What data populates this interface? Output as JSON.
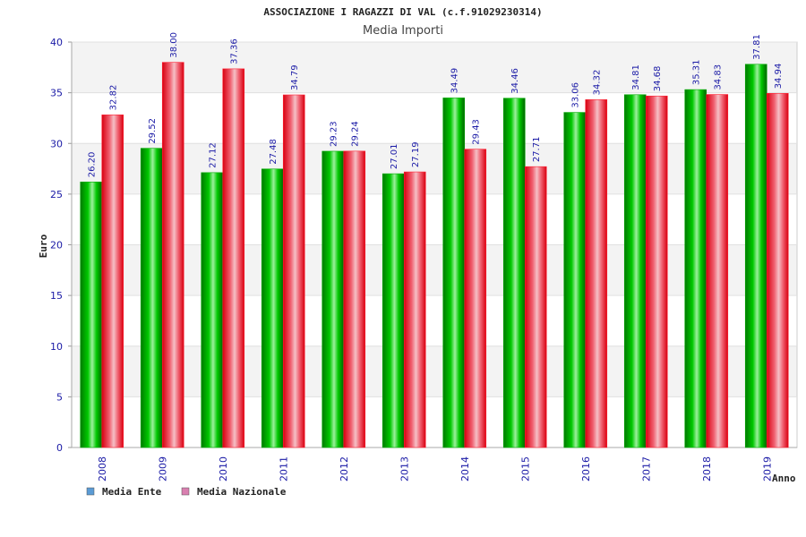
{
  "chart_data": {
    "type": "bar",
    "title": "ASSOCIAZIONE I RAGAZZI DI VAL (c.f.91029230314)",
    "subtitle": "Media Importi",
    "xlabel": "Anno",
    "ylabel": "Euro",
    "ylim": [
      0,
      40
    ],
    "yticks": [
      0,
      5,
      10,
      15,
      20,
      25,
      30,
      35,
      40
    ],
    "grid": true,
    "legend_position": "bottom-left",
    "categories": [
      "2008",
      "2009",
      "2010",
      "2011",
      "2012",
      "2013",
      "2014",
      "2015",
      "2016",
      "2017",
      "2018",
      "2019"
    ],
    "series": [
      {
        "name": "Media Ente",
        "bar_color": "#00a000",
        "legend_color": "#5b9bd5",
        "values": [
          26.2,
          29.52,
          27.12,
          27.48,
          29.23,
          27.01,
          34.49,
          34.46,
          33.06,
          34.81,
          35.31,
          37.81
        ],
        "labels": [
          "26.20",
          "29.52",
          "27.12",
          "27.48",
          "29.23",
          "27.01",
          "34.49",
          "34.46",
          "33.06",
          "34.81",
          "35.31",
          "37.81"
        ]
      },
      {
        "name": "Media Nazionale",
        "bar_color": "#e8141c",
        "legend_color": "#d97fb0",
        "values": [
          32.82,
          38.0,
          37.36,
          34.79,
          29.24,
          27.19,
          29.43,
          27.71,
          34.32,
          34.68,
          34.83,
          34.94
        ],
        "labels": [
          "32.82",
          "38.00",
          "37.36",
          "34.79",
          "29.24",
          "27.19",
          "29.43",
          "27.71",
          "34.32",
          "34.68",
          "34.83",
          "34.94"
        ]
      }
    ]
  }
}
